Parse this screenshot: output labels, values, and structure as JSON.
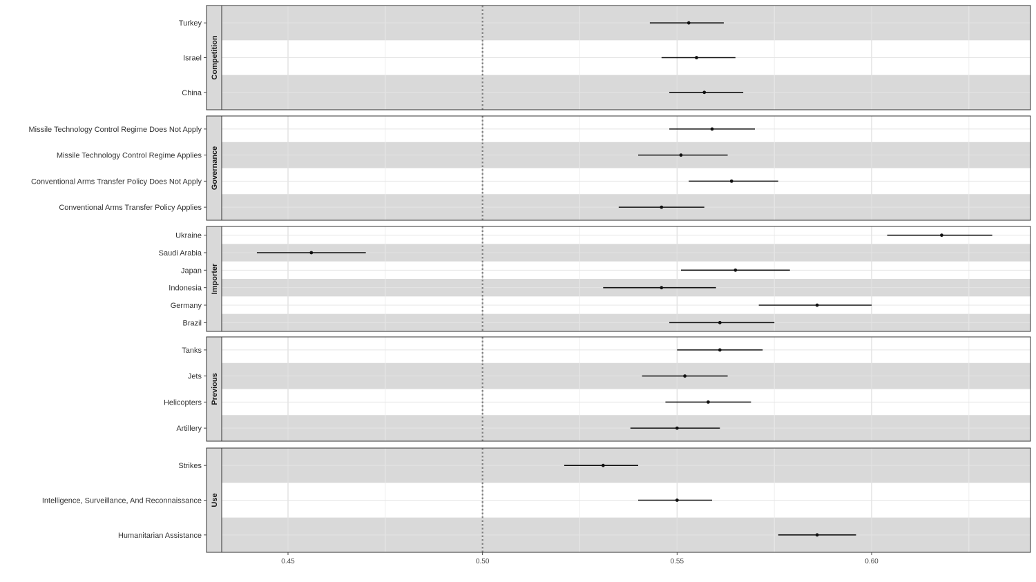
{
  "chart_data": {
    "type": "scatter",
    "subtype": "forest-plot-point-with-interval",
    "reference_line": 0.5,
    "reference_style": "dotted",
    "xlim": [
      0.43,
      0.64
    ],
    "x_ticks": [
      0.45,
      0.5,
      0.55,
      0.6
    ],
    "x_tick_labels": [
      "0.45",
      "0.50",
      "0.55",
      "0.60"
    ],
    "grid": true,
    "colors": {
      "band": "#d9d9d9",
      "strip": "#d9d9d9",
      "mark": "#111111",
      "reference": "#7f7f7f"
    },
    "panels": [
      {
        "label": "Competition",
        "rows": [
          {
            "label": "Turkey",
            "estimate": 0.553,
            "low": 0.543,
            "high": 0.562
          },
          {
            "label": "Israel",
            "estimate": 0.555,
            "low": 0.546,
            "high": 0.565
          },
          {
            "label": "China",
            "estimate": 0.557,
            "low": 0.548,
            "high": 0.567
          }
        ]
      },
      {
        "label": "Governance",
        "rows": [
          {
            "label": "Missile Technology Control Regime Does Not Apply",
            "estimate": 0.559,
            "low": 0.548,
            "high": 0.57
          },
          {
            "label": "Missile Technology Control Regime Applies",
            "estimate": 0.551,
            "low": 0.54,
            "high": 0.563
          },
          {
            "label": "Conventional Arms Transfer Policy Does Not Apply",
            "estimate": 0.564,
            "low": 0.553,
            "high": 0.576
          },
          {
            "label": "Conventional Arms Transfer Policy Applies",
            "estimate": 0.546,
            "low": 0.535,
            "high": 0.557
          }
        ]
      },
      {
        "label": "Importer",
        "rows": [
          {
            "label": "Ukraine",
            "estimate": 0.618,
            "low": 0.604,
            "high": 0.631
          },
          {
            "label": "Saudi Arabia",
            "estimate": 0.456,
            "low": 0.442,
            "high": 0.47
          },
          {
            "label": "Japan",
            "estimate": 0.565,
            "low": 0.551,
            "high": 0.579
          },
          {
            "label": "Indonesia",
            "estimate": 0.546,
            "low": 0.531,
            "high": 0.56
          },
          {
            "label": "Germany",
            "estimate": 0.586,
            "low": 0.571,
            "high": 0.6
          },
          {
            "label": "Brazil",
            "estimate": 0.561,
            "low": 0.548,
            "high": 0.575
          }
        ]
      },
      {
        "label": "Previous",
        "rows": [
          {
            "label": "Tanks",
            "estimate": 0.561,
            "low": 0.55,
            "high": 0.572
          },
          {
            "label": "Jets",
            "estimate": 0.552,
            "low": 0.541,
            "high": 0.563
          },
          {
            "label": "Helicopters",
            "estimate": 0.558,
            "low": 0.547,
            "high": 0.569
          },
          {
            "label": "Artillery",
            "estimate": 0.55,
            "low": 0.538,
            "high": 0.561
          }
        ]
      },
      {
        "label": "Use",
        "rows": [
          {
            "label": "Strikes",
            "estimate": 0.531,
            "low": 0.521,
            "high": 0.54
          },
          {
            "label": "Intelligence, Surveillance, And Reconnaissance",
            "estimate": 0.55,
            "low": 0.54,
            "high": 0.559
          },
          {
            "label": "Humanitarian Assistance",
            "estimate": 0.586,
            "low": 0.576,
            "high": 0.596
          }
        ]
      }
    ]
  }
}
